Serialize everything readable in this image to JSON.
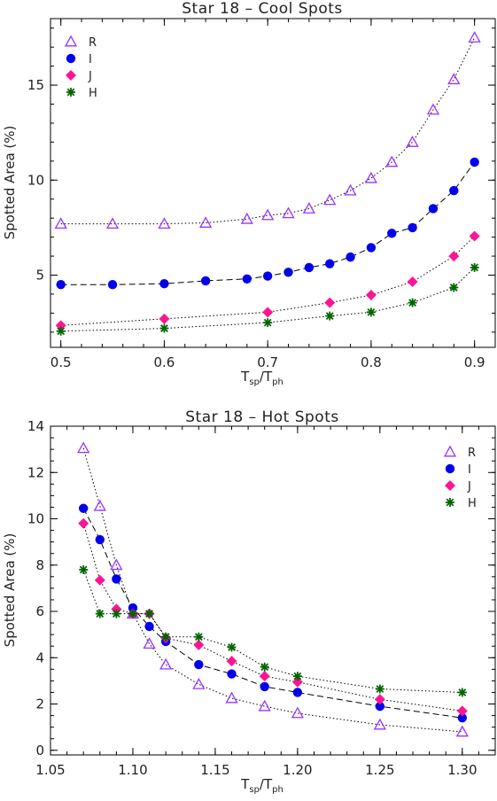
{
  "chart_data": [
    {
      "type": "line",
      "title": "Star 18 – Cool Spots",
      "xlabel": {
        "main": "T",
        "sub1": "sp",
        "mid": "/T",
        "sub2": "ph"
      },
      "ylabel": "Spotted Area (%)",
      "xlim": [
        0.49,
        0.92
      ],
      "ylim": [
        1.2,
        18.5
      ],
      "xticks": [
        0.5,
        0.6,
        0.7,
        0.8,
        0.9
      ],
      "xtick_labels": [
        "0.5",
        "0.6",
        "0.7",
        "0.8",
        "0.9"
      ],
      "yticks": [
        5,
        10,
        15
      ],
      "ytick_labels": [
        "5",
        "10",
        "15"
      ],
      "legend_position": "top-left",
      "series": [
        {
          "name": "R",
          "color": "#9933ff",
          "marker": "triangle-open",
          "line": "dotted",
          "x": [
            0.5,
            0.55,
            0.6,
            0.64,
            0.68,
            0.7,
            0.72,
            0.74,
            0.76,
            0.78,
            0.8,
            0.82,
            0.84,
            0.86,
            0.88,
            0.9
          ],
          "y": [
            7.7,
            7.7,
            7.7,
            7.75,
            7.95,
            8.15,
            8.25,
            8.5,
            8.95,
            9.45,
            10.1,
            10.95,
            12.0,
            13.7,
            15.3,
            17.5
          ]
        },
        {
          "name": "I",
          "color": "#0000ee",
          "marker": "circle",
          "line": "dashed",
          "x": [
            0.5,
            0.55,
            0.6,
            0.64,
            0.68,
            0.7,
            0.72,
            0.74,
            0.76,
            0.78,
            0.8,
            0.82,
            0.84,
            0.86,
            0.88,
            0.9
          ],
          "y": [
            4.5,
            4.5,
            4.55,
            4.7,
            4.8,
            4.95,
            5.15,
            5.4,
            5.6,
            5.95,
            6.45,
            7.2,
            7.5,
            8.5,
            9.45,
            10.95
          ]
        },
        {
          "name": "J",
          "color": "#ff1493",
          "marker": "diamond",
          "line": "dotted",
          "x": [
            0.5,
            0.6,
            0.7,
            0.76,
            0.8,
            0.84,
            0.88,
            0.9
          ],
          "y": [
            2.35,
            2.7,
            3.05,
            3.55,
            3.95,
            4.65,
            6.0,
            7.05
          ]
        },
        {
          "name": "H",
          "color": "#006400",
          "marker": "asterisk",
          "line": "dotted",
          "x": [
            0.5,
            0.6,
            0.7,
            0.76,
            0.8,
            0.84,
            0.88,
            0.9
          ],
          "y": [
            2.05,
            2.2,
            2.5,
            2.85,
            3.05,
            3.55,
            4.35,
            5.4
          ]
        }
      ]
    },
    {
      "type": "line",
      "title": "Star 18 – Hot Spots",
      "xlabel": {
        "main": "T",
        "sub1": "sp",
        "mid": "/T",
        "sub2": "ph"
      },
      "ylabel": "Spotted Area (%)",
      "xlim": [
        1.05,
        1.32
      ],
      "ylim": [
        -0.2,
        14.0
      ],
      "xticks": [
        1.05,
        1.1,
        1.15,
        1.2,
        1.25,
        1.3
      ],
      "xtick_labels": [
        "1.05",
        "1.10",
        "1.15",
        "1.20",
        "1.25",
        "1.30"
      ],
      "yticks": [
        0,
        2,
        4,
        6,
        8,
        10,
        12,
        14
      ],
      "ytick_labels": [
        "0",
        "2",
        "4",
        "6",
        "8",
        "10",
        "12",
        "14"
      ],
      "legend_position": "top-right",
      "series": [
        {
          "name": "R",
          "color": "#9933ff",
          "marker": "triangle-open",
          "line": "dotted",
          "x": [
            1.07,
            1.08,
            1.09,
            1.1,
            1.11,
            1.12,
            1.14,
            1.16,
            1.18,
            1.2,
            1.25,
            1.3
          ],
          "y": [
            13.05,
            10.55,
            8.0,
            5.9,
            4.6,
            3.7,
            2.85,
            2.25,
            1.9,
            1.6,
            1.1,
            0.8
          ]
        },
        {
          "name": "I",
          "color": "#0000ee",
          "marker": "circle",
          "line": "dashed",
          "x": [
            1.07,
            1.08,
            1.09,
            1.1,
            1.11,
            1.12,
            1.14,
            1.16,
            1.18,
            1.2,
            1.25,
            1.3
          ],
          "y": [
            10.45,
            9.1,
            7.4,
            6.15,
            5.35,
            4.7,
            3.7,
            3.3,
            2.75,
            2.5,
            1.9,
            1.4
          ]
        },
        {
          "name": "J",
          "color": "#ff1493",
          "marker": "diamond",
          "line": "dotted",
          "x": [
            1.07,
            1.08,
            1.09,
            1.1,
            1.11,
            1.12,
            1.14,
            1.16,
            1.18,
            1.2,
            1.25,
            1.3
          ],
          "y": [
            9.8,
            7.35,
            6.1,
            5.9,
            5.9,
            4.85,
            4.55,
            3.85,
            3.2,
            2.95,
            2.2,
            1.7
          ]
        },
        {
          "name": "H",
          "color": "#006400",
          "marker": "asterisk",
          "line": "dotted",
          "x": [
            1.07,
            1.08,
            1.09,
            1.1,
            1.11,
            1.12,
            1.14,
            1.16,
            1.18,
            1.2,
            1.25,
            1.3
          ],
          "y": [
            7.8,
            5.9,
            5.9,
            5.9,
            5.9,
            4.9,
            4.9,
            4.45,
            3.6,
            3.2,
            2.65,
            2.5
          ]
        }
      ]
    }
  ]
}
